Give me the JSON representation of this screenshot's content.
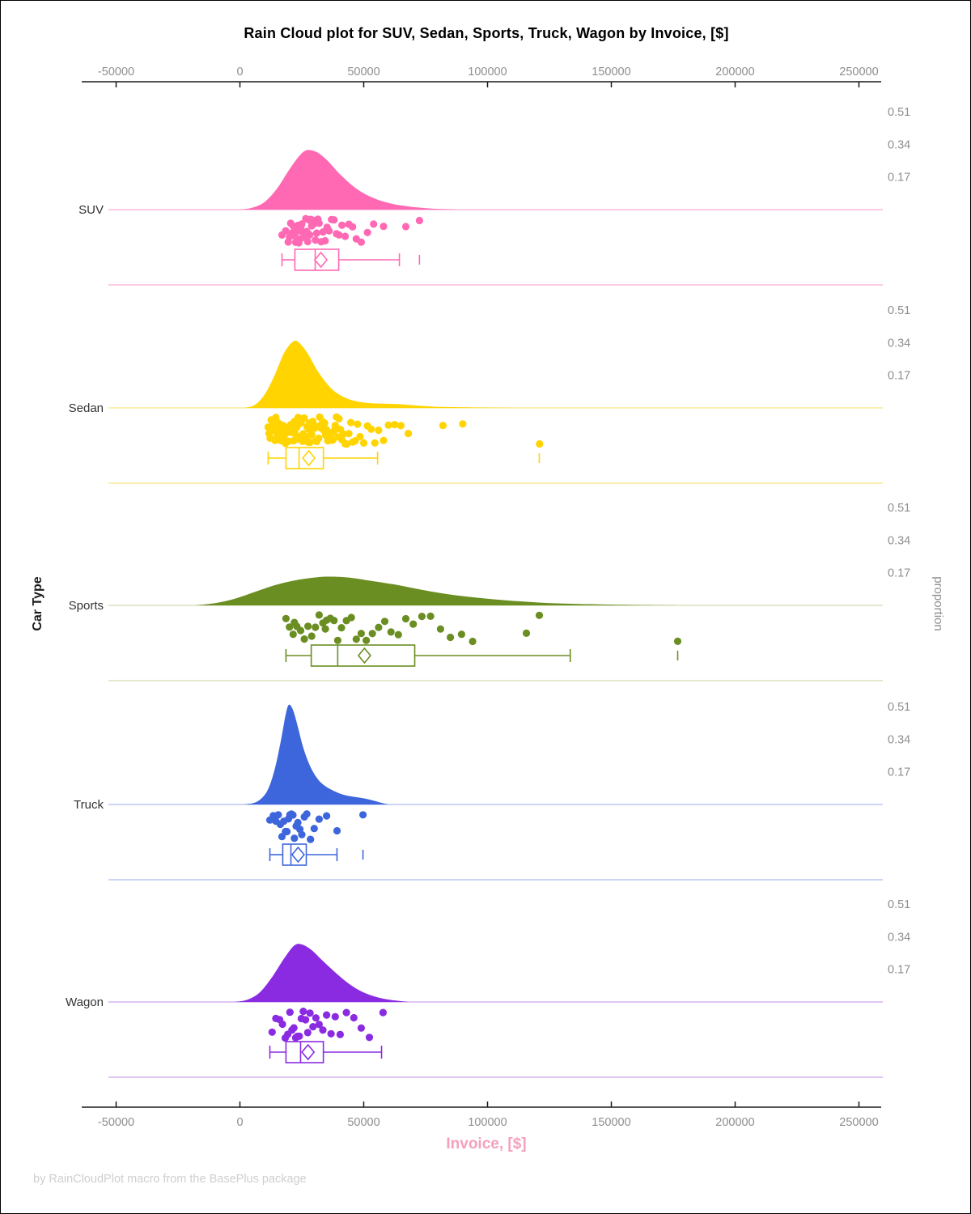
{
  "title": "Rain Cloud plot for SUV, Sedan, Sports, Truck, Wagon by Invoice, [$]",
  "footer_credit": "by RainCloudPlot macro from the BasePlus package",
  "axis": {
    "x_label": "Invoice, [$]",
    "y_label": "Car Type",
    "right_label": "proportion",
    "x_tick_labels": [
      "-50000",
      "0",
      "50000",
      "100000",
      "150000",
      "200000",
      "250000"
    ],
    "proportion_tick_labels": [
      "0.51",
      "0.34",
      "0.17"
    ]
  },
  "palette": {
    "title_color": "#000000",
    "tick_label_color": "#8E8E8E",
    "axis_line_color": "#1A1A1A",
    "x_label_color": "#F4A0BE",
    "footer_color": "#CFCFCF",
    "category_label_color": "#333333",
    "right_label_color": "#8E8E8E"
  },
  "chart_data": {
    "type": "raincloud",
    "title": "Rain Cloud plot for SUV, Sedan, Sports, Truck, Wagon by Invoice, [$]",
    "xlabel": "Invoice, [$]",
    "ylabel": "Car Type",
    "right_axis_label": "proportion",
    "x_range": [
      -50000,
      250000
    ],
    "x_ticks": [
      -50000,
      0,
      50000,
      100000,
      150000,
      200000,
      250000
    ],
    "proportion_ticks": [
      0.51,
      0.34,
      0.17
    ],
    "categories": [
      "SUV",
      "Sedan",
      "Sports",
      "Truck",
      "Wagon"
    ],
    "series": [
      {
        "name": "SUV",
        "color": "#FF69B4",
        "light_color": "#FBBBDB",
        "box": {
          "whisker_low": 17000,
          "q1": 22200,
          "median": 30400,
          "q3": 39900,
          "whisker_high": 64400,
          "mean": 32700,
          "outliers": [
            72500
          ]
        },
        "density": [
          [
            0,
            0
          ],
          [
            5000,
            0.01
          ],
          [
            10000,
            0.04
          ],
          [
            15000,
            0.11
          ],
          [
            20000,
            0.21
          ],
          [
            24000,
            0.28
          ],
          [
            27000,
            0.31
          ],
          [
            31000,
            0.3
          ],
          [
            35000,
            0.26
          ],
          [
            40000,
            0.19
          ],
          [
            45000,
            0.13
          ],
          [
            50000,
            0.085
          ],
          [
            55000,
            0.055
          ],
          [
            60000,
            0.035
          ],
          [
            66000,
            0.02
          ],
          [
            73000,
            0.01
          ],
          [
            80000,
            0.004
          ],
          [
            88000,
            0
          ]
        ],
        "points": [
          17000,
          18500,
          19500,
          20000,
          20500,
          21000,
          21500,
          22000,
          22500,
          23000,
          23400,
          23800,
          24200,
          24600,
          25000,
          25400,
          25800,
          26200,
          26600,
          27000,
          27400,
          27800,
          28200,
          28600,
          29000,
          29500,
          30000,
          30500,
          31000,
          31500,
          32000,
          32800,
          33600,
          34400,
          35200,
          36000,
          37000,
          38000,
          39000,
          40000,
          41200,
          42500,
          44000,
          45500,
          47000,
          49000,
          51500,
          54000,
          58000,
          67000,
          72500
        ]
      },
      {
        "name": "Sedan",
        "color": "#FFD400",
        "light_color": "#F9EA9A",
        "box": {
          "whisker_low": 11400,
          "q1": 18600,
          "median": 23900,
          "q3": 33700,
          "whisker_high": 55600,
          "mean": 27800,
          "outliers": [
            120900
          ]
        },
        "density": [
          [
            2000,
            0
          ],
          [
            6000,
            0.015
          ],
          [
            10000,
            0.07
          ],
          [
            14000,
            0.17
          ],
          [
            18000,
            0.29
          ],
          [
            22000,
            0.35
          ],
          [
            25000,
            0.325
          ],
          [
            28000,
            0.27
          ],
          [
            31000,
            0.2
          ],
          [
            34000,
            0.145
          ],
          [
            37000,
            0.1
          ],
          [
            40000,
            0.07
          ],
          [
            44000,
            0.045
          ],
          [
            48000,
            0.032
          ],
          [
            53000,
            0.024
          ],
          [
            58000,
            0.022
          ],
          [
            63000,
            0.02
          ],
          [
            68000,
            0.016
          ],
          [
            74000,
            0.01
          ],
          [
            82000,
            0.005
          ],
          [
            95000,
            0.002
          ],
          [
            112000,
            0
          ]
        ],
        "points": [
          11400,
          11800,
          12200,
          12600,
          13000,
          13400,
          13800,
          14200,
          14500,
          14800,
          15100,
          15400,
          15700,
          16000,
          16300,
          16600,
          16900,
          17200,
          17500,
          17800,
          18100,
          18400,
          18700,
          19000,
          19300,
          19600,
          19900,
          20200,
          20500,
          20800,
          21100,
          21400,
          21700,
          22000,
          22300,
          22600,
          22900,
          23200,
          23500,
          23800,
          24100,
          24400,
          24700,
          25000,
          25300,
          25600,
          25900,
          26200,
          26500,
          26800,
          27100,
          27400,
          27700,
          28000,
          28300,
          28600,
          29000,
          29400,
          29800,
          30200,
          30600,
          31000,
          31400,
          31800,
          32200,
          32600,
          33000,
          33400,
          33800,
          34200,
          34600,
          35000,
          35500,
          36000,
          36500,
          37000,
          37500,
          38000,
          38500,
          39000,
          39500,
          40000,
          40600,
          41200,
          41800,
          42500,
          43200,
          44000,
          44800,
          45600,
          46500,
          47500,
          48500,
          50000,
          51500,
          53000,
          54500,
          56000,
          58000,
          60000,
          62500,
          65000,
          68000,
          82000,
          90000,
          121000
        ]
      },
      {
        "name": "Sports",
        "color": "#6B8E23",
        "light_color": "#D8E2C0",
        "box": {
          "whisker_low": 18600,
          "q1": 28800,
          "median": 39500,
          "q3": 70600,
          "whisker_high": 133400,
          "mean": 50300,
          "outliers": [
            176800
          ]
        },
        "density": [
          [
            -18000,
            0
          ],
          [
            -10000,
            0.012
          ],
          [
            -2000,
            0.035
          ],
          [
            6000,
            0.07
          ],
          [
            14000,
            0.105
          ],
          [
            22000,
            0.13
          ],
          [
            30000,
            0.145
          ],
          [
            36000,
            0.15
          ],
          [
            44000,
            0.145
          ],
          [
            52000,
            0.13
          ],
          [
            62000,
            0.11
          ],
          [
            72000,
            0.085
          ],
          [
            82000,
            0.062
          ],
          [
            92000,
            0.045
          ],
          [
            102000,
            0.032
          ],
          [
            112000,
            0.022
          ],
          [
            122000,
            0.014
          ],
          [
            132000,
            0.009
          ],
          [
            145000,
            0.005
          ],
          [
            160000,
            0.002
          ],
          [
            178000,
            0
          ]
        ],
        "points": [
          18600,
          20000,
          21500,
          22000,
          23000,
          24500,
          26000,
          27500,
          29000,
          30500,
          32000,
          33500,
          34500,
          35000,
          36500,
          38000,
          39500,
          41000,
          43000,
          45000,
          47000,
          49000,
          51000,
          53500,
          56000,
          58500,
          61000,
          64000,
          67000,
          70000,
          73500,
          77000,
          81000,
          85000,
          89500,
          94000,
          115700,
          120900,
          176800
        ]
      },
      {
        "name": "Truck",
        "color": "#3E66DC",
        "light_color": "#B9C8F0",
        "box": {
          "whisker_low": 12100,
          "q1": 17300,
          "median": 20600,
          "q3": 26800,
          "whisker_high": 39200,
          "mean": 23500,
          "outliers": [
            49700
          ]
        },
        "density": [
          [
            2000,
            0
          ],
          [
            7000,
            0.015
          ],
          [
            11000,
            0.07
          ],
          [
            14000,
            0.18
          ],
          [
            16500,
            0.33
          ],
          [
            18500,
            0.47
          ],
          [
            19800,
            0.52
          ],
          [
            21500,
            0.49
          ],
          [
            23500,
            0.4
          ],
          [
            25500,
            0.3
          ],
          [
            28000,
            0.21
          ],
          [
            31000,
            0.14
          ],
          [
            34000,
            0.1
          ],
          [
            38000,
            0.07
          ],
          [
            42000,
            0.05
          ],
          [
            46000,
            0.04
          ],
          [
            50000,
            0.032
          ],
          [
            54000,
            0.02
          ],
          [
            57000,
            0.009
          ],
          [
            60000,
            0
          ]
        ],
        "points": [
          12100,
          13500,
          14500,
          15500,
          16300,
          17000,
          17700,
          18400,
          19000,
          19600,
          20200,
          20800,
          21400,
          22000,
          22700,
          23400,
          24200,
          25000,
          26000,
          27000,
          28500,
          30000,
          32000,
          35000,
          39200,
          49700
        ]
      },
      {
        "name": "Wagon",
        "color": "#8A2BE2",
        "light_color": "#D5B2EE",
        "box": {
          "whisker_low": 12100,
          "q1": 18600,
          "median": 24500,
          "q3": 33700,
          "whisker_high": 57200,
          "mean": 27500,
          "outliers": []
        },
        "density": [
          [
            -2000,
            0
          ],
          [
            3000,
            0.012
          ],
          [
            8000,
            0.05
          ],
          [
            13000,
            0.13
          ],
          [
            18000,
            0.23
          ],
          [
            22000,
            0.295
          ],
          [
            25000,
            0.3
          ],
          [
            29000,
            0.27
          ],
          [
            33000,
            0.22
          ],
          [
            38000,
            0.16
          ],
          [
            43000,
            0.105
          ],
          [
            48000,
            0.062
          ],
          [
            53000,
            0.034
          ],
          [
            58000,
            0.017
          ],
          [
            63000,
            0.007
          ],
          [
            68000,
            0
          ]
        ],
        "points": [
          13000,
          14500,
          16000,
          17200,
          18300,
          19300,
          20200,
          21000,
          21800,
          22500,
          23200,
          24000,
          24800,
          25600,
          26500,
          27400,
          28300,
          29500,
          30700,
          32000,
          33500,
          35000,
          36800,
          38500,
          40500,
          43000,
          46000,
          49000,
          52300,
          57800
        ]
      }
    ]
  }
}
